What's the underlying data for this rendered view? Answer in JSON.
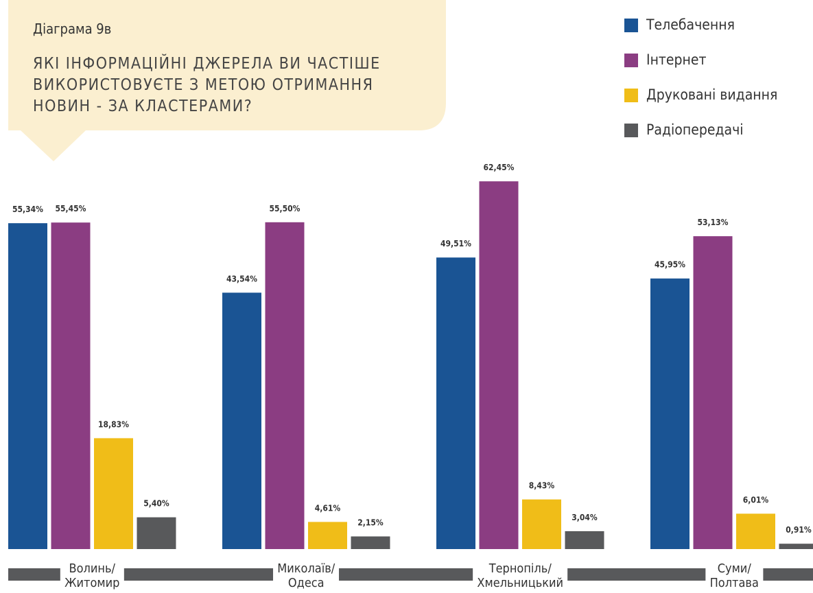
{
  "chart_data": {
    "type": "bar",
    "title": "Діаграма 9в",
    "subtitle": "ЯКІ ІНФОРМАЦІЙНІ ДЖЕРЕЛА ВИ ЧАСТІШЕ\nВИКОРИСТОВУЄТЕ З МЕТОЮ ОТРИМАННЯ\nНОВИН - ЗА КЛАСТЕРАМИ?",
    "categories": [
      "Волинь/\nЖитомир",
      "Миколаїв/\nОдеса",
      "Тернопіль/\nХмельницький",
      "Суми/\nПолтава"
    ],
    "series": [
      {
        "name": "Телебачення",
        "color": "#1a5494",
        "values": [
          55.34,
          43.54,
          49.51,
          45.95
        ],
        "value_labels": [
          "55,34%",
          "43,54%",
          "49,51%",
          "45,95%"
        ]
      },
      {
        "name": "Інтернет",
        "color": "#8b3d82",
        "values": [
          55.45,
          55.5,
          62.45,
          53.13
        ],
        "value_labels": [
          "55,45%",
          "55,50%",
          "62,45%",
          "53,13%"
        ]
      },
      {
        "name": "Друковані видання",
        "color": "#f0bd18",
        "values": [
          18.83,
          4.61,
          8.43,
          6.01
        ],
        "value_labels": [
          "18,83%",
          "4,61%",
          "8,43%",
          "6,01%"
        ]
      },
      {
        "name": "Радіопередачі",
        "color": "#58595b",
        "values": [
          5.4,
          2.15,
          3.04,
          0.91
        ],
        "value_labels": [
          "5,40%",
          "2,15%",
          "3,04%",
          "0,91%"
        ]
      }
    ]
  }
}
